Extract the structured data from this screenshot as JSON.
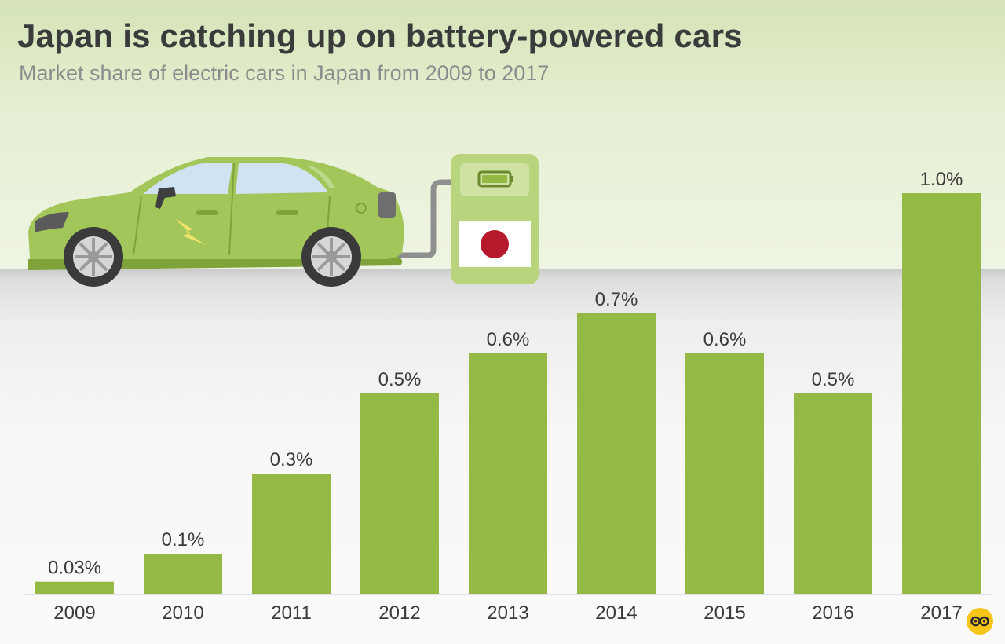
{
  "header": {
    "title": "Japan is catching up on battery-powered cars",
    "subtitle": "Market share of electric cars in Japan from 2009 to 2017"
  },
  "colors": {
    "bar": "#94b944",
    "car_body": "#a3c65a",
    "charger": "#b8d47c",
    "flag_red": "#b5192b",
    "text_dark": "#3b3b3b",
    "text_gray": "#8c8c8c",
    "logo": "#f5c518"
  },
  "icons": {
    "illustration": "electric-car-charging-icon",
    "flag": "japan-flag-icon",
    "logo": "statista-logo-icon"
  },
  "chart_data": {
    "type": "bar",
    "title": "Japan is catching up on battery-powered cars",
    "subtitle": "Market share of electric cars in Japan from 2009 to 2017",
    "categories": [
      "2009",
      "2010",
      "2011",
      "2012",
      "2013",
      "2014",
      "2015",
      "2016",
      "2017"
    ],
    "values": [
      0.03,
      0.1,
      0.3,
      0.5,
      0.6,
      0.7,
      0.6,
      0.5,
      1.0
    ],
    "labels": [
      "0.03%",
      "0.1%",
      "0.3%",
      "0.5%",
      "0.6%",
      "0.7%",
      "0.6%",
      "0.5%",
      "1.0%"
    ],
    "xlabel": "",
    "ylabel": "",
    "ylim": [
      0,
      1.0
    ],
    "grid": false,
    "legend": "none"
  }
}
